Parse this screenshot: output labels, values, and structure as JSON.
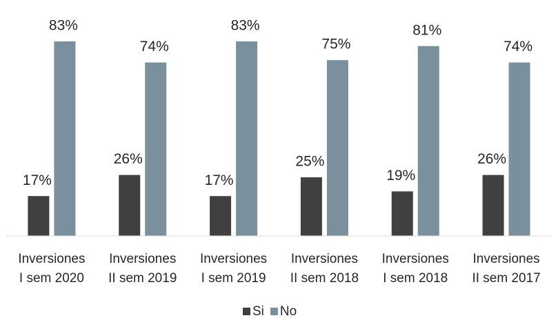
{
  "chart_data": {
    "type": "bar",
    "categories": [
      "Inversiones\nI sem 2020",
      "Inversiones\nII sem 2019",
      "Inversiones\nI sem 2019",
      "Inversiones\nII sem 2018",
      "Inversiones\nI sem 2018",
      "Inversiones\nII sem 2017"
    ],
    "series": [
      {
        "name": "Si",
        "color": "#404040",
        "values": [
          17,
          26,
          17,
          25,
          19,
          26
        ],
        "value_labels": [
          "17%",
          "26%",
          "17%",
          "25%",
          "19%",
          "26%"
        ]
      },
      {
        "name": "No",
        "color": "#7a909c",
        "values": [
          83,
          74,
          83,
          75,
          81,
          74
        ],
        "value_labels": [
          "83%",
          "74%",
          "83%",
          "75%",
          "81%",
          "74%"
        ]
      }
    ],
    "legend": "bottom"
  }
}
